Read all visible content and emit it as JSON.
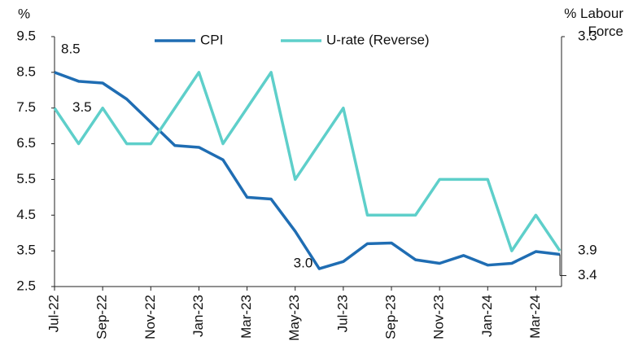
{
  "chart_data": {
    "type": "line",
    "ylabel": "%",
    "y2label": "% Labour Force",
    "categories": [
      "Jul-22",
      null,
      "Sep-22",
      null,
      "Nov-22",
      null,
      "Jan-23",
      null,
      "Mar-23",
      null,
      "May-23",
      null,
      "Jul-23",
      null,
      "Sep-23",
      null,
      "Nov-23",
      null,
      "Jan-24",
      null,
      "Mar-24",
      null
    ],
    "series": [
      {
        "name": "CPI",
        "color": "#1f6db3",
        "values": [
          8.5,
          8.25,
          8.2,
          7.75,
          7.1,
          6.45,
          6.4,
          6.05,
          5.0,
          4.95,
          4.05,
          3.0,
          3.2,
          3.7,
          3.72,
          3.25,
          3.15,
          3.37,
          3.1,
          3.15,
          3.48,
          3.4
        ],
        "value_labels": [
          "8.5",
          null,
          null,
          null,
          null,
          null,
          null,
          null,
          null,
          null,
          null,
          "3.0",
          null,
          null,
          null,
          null,
          null,
          null,
          null,
          null,
          null,
          "3.4"
        ]
      },
      {
        "name": "U-rate (Reverse)",
        "color": "#5ecfca",
        "axis": "y2",
        "values": [
          3.5,
          3.6,
          3.5,
          3.6,
          3.6,
          3.5,
          3.4,
          3.6,
          3.5,
          3.4,
          3.7,
          3.6,
          3.5,
          3.8,
          3.8,
          3.8,
          3.7,
          3.7,
          3.7,
          3.9,
          3.8,
          3.9
        ],
        "value_labels": [
          "3.5",
          null,
          null,
          null,
          null,
          null,
          null,
          null,
          null,
          null,
          null,
          null,
          null,
          null,
          null,
          null,
          null,
          null,
          null,
          null,
          null,
          "3.9"
        ]
      }
    ],
    "ylim": [
      2.5,
      9.5
    ],
    "yticks": [
      2.5,
      3.5,
      4.5,
      5.5,
      6.5,
      7.5,
      8.5,
      9.5
    ],
    "y2lim": [
      4.0,
      3.3
    ],
    "y2ticks": [
      3.3
    ],
    "legend": "top"
  }
}
